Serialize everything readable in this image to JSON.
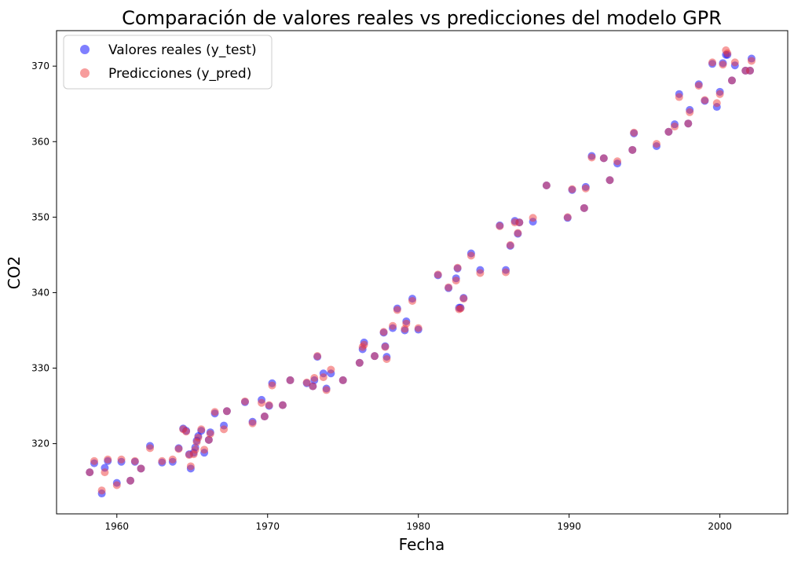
{
  "chart_data": {
    "type": "scatter",
    "title": "Comparación de valores reales vs predicciones del modelo GPR",
    "xlabel": "Fecha",
    "ylabel": "CO2",
    "xlim": [
      1956.0,
      2004.5
    ],
    "ylim": [
      310.7,
      374.7
    ],
    "xticks": [
      1960,
      1970,
      1980,
      1990,
      2000
    ],
    "yticks": [
      320,
      330,
      340,
      350,
      360,
      370
    ],
    "grid": false,
    "legend_position": "top-left",
    "series": [
      {
        "name": "Valores reales (y_test)",
        "color": "#0000ff",
        "points": [
          [
            1958.2,
            316.2
          ],
          [
            1958.5,
            317.4
          ],
          [
            1959.0,
            313.4
          ],
          [
            1959.2,
            316.8
          ],
          [
            1959.4,
            317.7
          ],
          [
            1960.0,
            314.8
          ],
          [
            1960.3,
            317.6
          ],
          [
            1960.9,
            315.1
          ],
          [
            1961.2,
            317.6
          ],
          [
            1961.6,
            316.7
          ],
          [
            1962.2,
            319.7
          ],
          [
            1963.0,
            317.5
          ],
          [
            1963.7,
            317.6
          ],
          [
            1964.1,
            319.4
          ],
          [
            1964.4,
            322.0
          ],
          [
            1964.6,
            321.7
          ],
          [
            1964.8,
            318.6
          ],
          [
            1964.9,
            316.7
          ],
          [
            1965.1,
            318.8
          ],
          [
            1965.2,
            319.5
          ],
          [
            1965.3,
            320.4
          ],
          [
            1965.4,
            321.0
          ],
          [
            1965.6,
            321.7
          ],
          [
            1965.8,
            318.8
          ],
          [
            1966.1,
            320.5
          ],
          [
            1966.2,
            321.5
          ],
          [
            1966.5,
            324.0
          ],
          [
            1967.1,
            322.4
          ],
          [
            1967.3,
            324.3
          ],
          [
            1968.5,
            325.5
          ],
          [
            1969.0,
            322.9
          ],
          [
            1969.6,
            325.8
          ],
          [
            1969.8,
            323.6
          ],
          [
            1970.1,
            325.0
          ],
          [
            1970.3,
            328.0
          ],
          [
            1971.0,
            325.1
          ],
          [
            1971.5,
            328.4
          ],
          [
            1972.6,
            328.0
          ],
          [
            1973.0,
            327.6
          ],
          [
            1973.1,
            328.4
          ],
          [
            1973.3,
            331.5
          ],
          [
            1973.7,
            329.3
          ],
          [
            1973.9,
            327.3
          ],
          [
            1974.2,
            329.3
          ],
          [
            1975.0,
            328.4
          ],
          [
            1976.1,
            330.7
          ],
          [
            1976.3,
            332.5
          ],
          [
            1976.4,
            333.4
          ],
          [
            1977.1,
            331.6
          ],
          [
            1977.7,
            334.7
          ],
          [
            1977.8,
            332.9
          ],
          [
            1977.9,
            331.5
          ],
          [
            1978.3,
            335.3
          ],
          [
            1978.6,
            337.9
          ],
          [
            1979.1,
            335.0
          ],
          [
            1979.2,
            336.2
          ],
          [
            1979.6,
            339.2
          ],
          [
            1980.0,
            335.1
          ],
          [
            1981.3,
            342.3
          ],
          [
            1982.0,
            340.6
          ],
          [
            1982.5,
            341.9
          ],
          [
            1982.6,
            343.2
          ],
          [
            1982.7,
            338.0
          ],
          [
            1982.8,
            338.0
          ],
          [
            1983.0,
            339.3
          ],
          [
            1983.5,
            345.2
          ],
          [
            1984.1,
            343.0
          ],
          [
            1985.4,
            348.9
          ],
          [
            1985.8,
            343.0
          ],
          [
            1986.1,
            346.2
          ],
          [
            1986.4,
            349.5
          ],
          [
            1986.6,
            347.8
          ],
          [
            1986.7,
            349.3
          ],
          [
            1987.6,
            349.4
          ],
          [
            1988.5,
            354.2
          ],
          [
            1989.9,
            349.9
          ],
          [
            1990.2,
            353.6
          ],
          [
            1991.0,
            351.2
          ],
          [
            1991.1,
            354.0
          ],
          [
            1991.5,
            358.1
          ],
          [
            1992.3,
            357.8
          ],
          [
            1992.7,
            354.9
          ],
          [
            1993.2,
            357.1
          ],
          [
            1994.2,
            358.9
          ],
          [
            1994.3,
            361.1
          ],
          [
            1995.8,
            359.4
          ],
          [
            1996.6,
            361.3
          ],
          [
            1997.0,
            362.3
          ],
          [
            1997.3,
            366.3
          ],
          [
            1997.9,
            362.4
          ],
          [
            1998.0,
            364.2
          ],
          [
            1998.6,
            367.6
          ],
          [
            1999.0,
            365.4
          ],
          [
            1999.5,
            370.3
          ],
          [
            1999.8,
            364.6
          ],
          [
            2000.0,
            366.6
          ],
          [
            2000.2,
            370.4
          ],
          [
            2000.4,
            371.5
          ],
          [
            2000.5,
            371.5
          ],
          [
            2000.8,
            368.1
          ],
          [
            2001.0,
            370.1
          ],
          [
            2001.7,
            369.4
          ],
          [
            2002.0,
            369.4
          ],
          [
            2002.1,
            371.0
          ]
        ]
      },
      {
        "name": "Predicciones (y_pred)",
        "color": "#f03c3c",
        "points": [
          [
            1958.2,
            316.2
          ],
          [
            1958.5,
            317.7
          ],
          [
            1959.0,
            313.8
          ],
          [
            1959.2,
            316.2
          ],
          [
            1959.4,
            317.9
          ],
          [
            1960.0,
            314.5
          ],
          [
            1960.3,
            317.9
          ],
          [
            1960.9,
            315.1
          ],
          [
            1961.2,
            317.7
          ],
          [
            1961.6,
            316.7
          ],
          [
            1962.2,
            319.4
          ],
          [
            1963.0,
            317.7
          ],
          [
            1963.7,
            317.9
          ],
          [
            1964.1,
            319.3
          ],
          [
            1964.4,
            321.9
          ],
          [
            1964.6,
            321.6
          ],
          [
            1964.8,
            318.5
          ],
          [
            1964.9,
            317.0
          ],
          [
            1965.1,
            318.6
          ],
          [
            1965.2,
            319.2
          ],
          [
            1965.3,
            320.2
          ],
          [
            1965.4,
            320.8
          ],
          [
            1965.6,
            321.9
          ],
          [
            1965.8,
            319.2
          ],
          [
            1966.1,
            320.5
          ],
          [
            1966.2,
            321.3
          ],
          [
            1966.5,
            324.2
          ],
          [
            1967.1,
            321.9
          ],
          [
            1967.3,
            324.3
          ],
          [
            1968.5,
            325.6
          ],
          [
            1969.0,
            322.7
          ],
          [
            1969.6,
            325.4
          ],
          [
            1969.8,
            323.6
          ],
          [
            1970.1,
            325.1
          ],
          [
            1970.3,
            327.7
          ],
          [
            1971.0,
            325.1
          ],
          [
            1971.5,
            328.4
          ],
          [
            1972.6,
            328.1
          ],
          [
            1973.0,
            327.6
          ],
          [
            1973.1,
            328.7
          ],
          [
            1973.3,
            331.6
          ],
          [
            1973.7,
            328.8
          ],
          [
            1973.9,
            327.1
          ],
          [
            1974.2,
            329.8
          ],
          [
            1975.0,
            328.4
          ],
          [
            1976.1,
            330.7
          ],
          [
            1976.3,
            332.8
          ],
          [
            1976.4,
            333.1
          ],
          [
            1977.1,
            331.6
          ],
          [
            1977.7,
            334.8
          ],
          [
            1977.8,
            332.8
          ],
          [
            1977.9,
            331.2
          ],
          [
            1978.3,
            335.6
          ],
          [
            1978.6,
            337.7
          ],
          [
            1979.1,
            335.2
          ],
          [
            1979.2,
            335.9
          ],
          [
            1979.6,
            338.9
          ],
          [
            1980.0,
            335.3
          ],
          [
            1981.3,
            342.4
          ],
          [
            1982.0,
            340.7
          ],
          [
            1982.5,
            341.6
          ],
          [
            1982.6,
            343.3
          ],
          [
            1982.7,
            337.8
          ],
          [
            1982.8,
            337.9
          ],
          [
            1983.0,
            339.2
          ],
          [
            1983.5,
            344.9
          ],
          [
            1984.1,
            342.6
          ],
          [
            1985.4,
            348.8
          ],
          [
            1985.8,
            342.7
          ],
          [
            1986.1,
            346.3
          ],
          [
            1986.4,
            349.3
          ],
          [
            1986.6,
            347.9
          ],
          [
            1986.7,
            349.3
          ],
          [
            1987.6,
            349.9
          ],
          [
            1988.5,
            354.2
          ],
          [
            1989.9,
            350.0
          ],
          [
            1990.2,
            353.7
          ],
          [
            1991.0,
            351.2
          ],
          [
            1991.1,
            353.8
          ],
          [
            1991.5,
            357.9
          ],
          [
            1992.3,
            357.8
          ],
          [
            1992.7,
            354.9
          ],
          [
            1993.2,
            357.4
          ],
          [
            1994.2,
            358.9
          ],
          [
            1994.3,
            361.2
          ],
          [
            1995.8,
            359.7
          ],
          [
            1996.6,
            361.3
          ],
          [
            1997.0,
            362.0
          ],
          [
            1997.3,
            365.9
          ],
          [
            1997.9,
            362.4
          ],
          [
            1998.0,
            363.9
          ],
          [
            1998.6,
            367.4
          ],
          [
            1999.0,
            365.5
          ],
          [
            1999.5,
            370.5
          ],
          [
            1999.8,
            365.1
          ],
          [
            2000.0,
            366.3
          ],
          [
            2000.2,
            370.2
          ],
          [
            2000.4,
            372.1
          ],
          [
            2000.5,
            371.7
          ],
          [
            2000.8,
            368.1
          ],
          [
            2001.0,
            370.5
          ],
          [
            2001.7,
            369.4
          ],
          [
            2002.0,
            369.4
          ],
          [
            2002.1,
            370.7
          ]
        ]
      }
    ]
  }
}
